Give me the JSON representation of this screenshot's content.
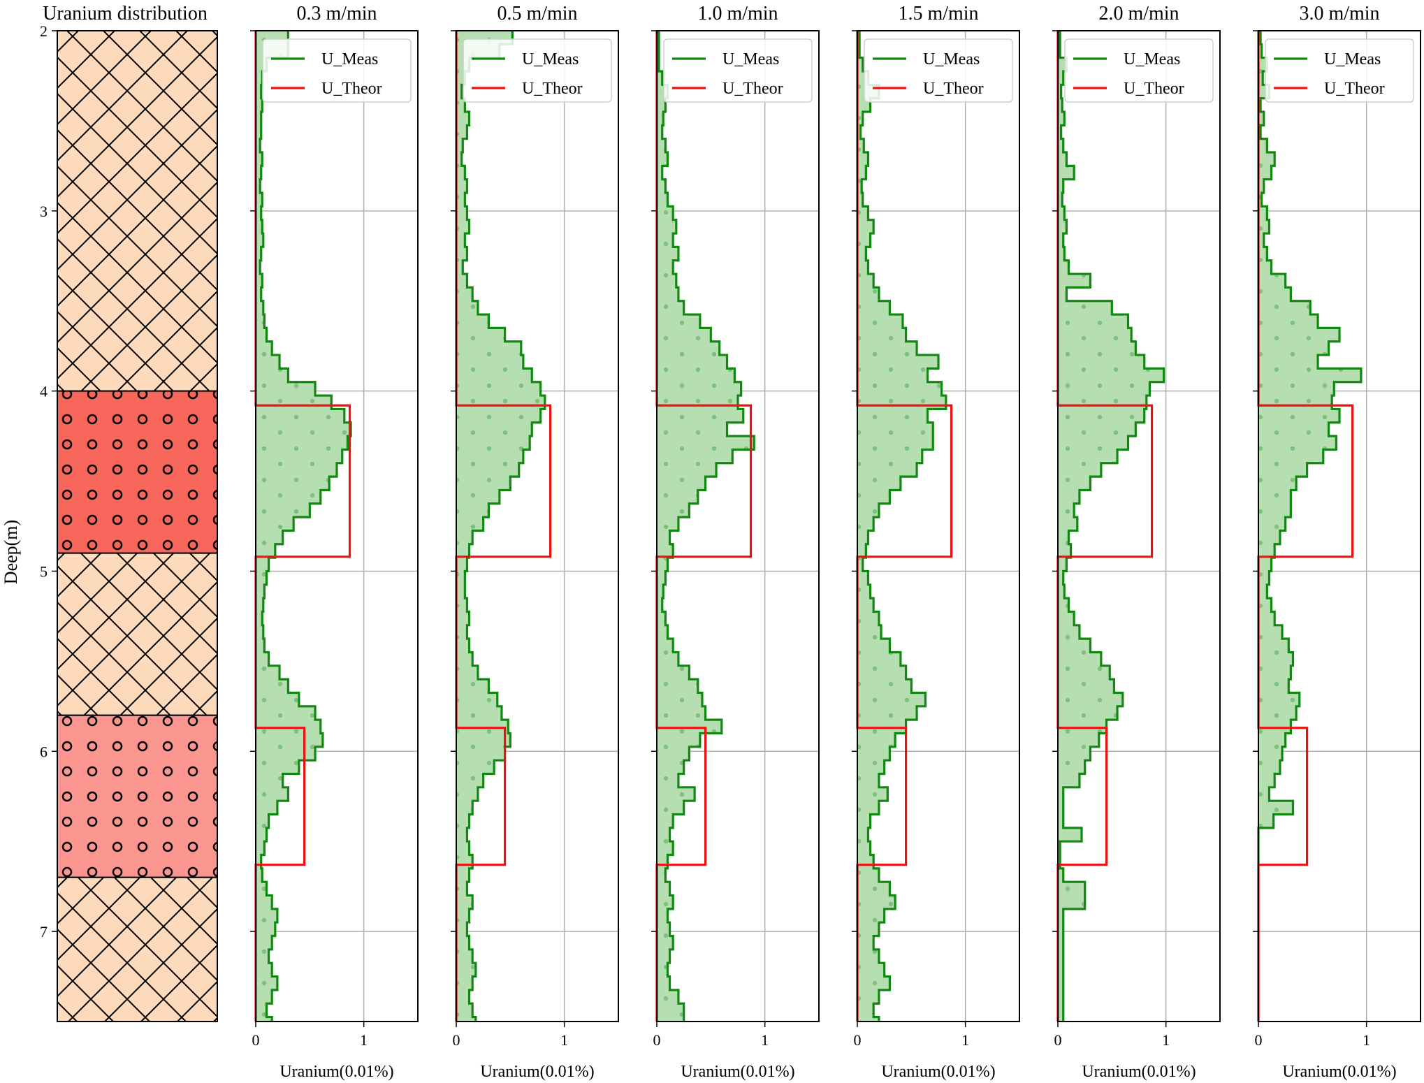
{
  "figure": {
    "ylabel": "Deep(m)",
    "colors": {
      "measured_line": "#118811",
      "measured_fill": "#b5dfb0",
      "measured_dots": "#7cc27c",
      "theoretical_line": "#ee1111",
      "host_rock": "#fddabc",
      "ore_high": "#f7665a",
      "ore_low": "#fa9590",
      "grid": "#b0b0b0"
    }
  },
  "chart_data": [
    {
      "type": "column",
      "title": "Uranium distribution",
      "ylabel": "Deep(m)",
      "ylim": [
        2,
        7.5
      ],
      "y_ticks": [
        2,
        3,
        4,
        5,
        6,
        7
      ],
      "layers": [
        {
          "top": 2.0,
          "bottom": 4.0,
          "pattern": "crosshatch",
          "color": "#fddabc"
        },
        {
          "top": 4.0,
          "bottom": 4.9,
          "pattern": "circles",
          "color": "#f7665a"
        },
        {
          "top": 4.9,
          "bottom": 5.8,
          "pattern": "crosshatch",
          "color": "#fddabc"
        },
        {
          "top": 5.8,
          "bottom": 6.7,
          "pattern": "circles",
          "color": "#fa9590"
        },
        {
          "top": 6.7,
          "bottom": 7.5,
          "pattern": "crosshatch",
          "color": "#fddabc"
        }
      ]
    },
    {
      "type": "area",
      "title": "0.3 m/min",
      "xlabel": "Uranium(0.01%)",
      "xlim": [
        0,
        1.5
      ],
      "ylim": [
        2,
        7.5
      ],
      "x_ticks": [
        0,
        1
      ],
      "y_ticks": [
        2,
        3,
        4,
        5,
        6,
        7
      ],
      "legend": [
        "U_Meas",
        "U_Theor"
      ],
      "legend_position": "top-right",
      "grid": true,
      "depth_step": 0.075,
      "depth_start": 2.0,
      "u_meas": [
        0.3,
        0.3,
        0.1,
        0.06,
        0.05,
        0.06,
        0.05,
        0.05,
        0.04,
        0.06,
        0.05,
        0.04,
        0.06,
        0.05,
        0.06,
        0.07,
        0.05,
        0.04,
        0.06,
        0.05,
        0.07,
        0.08,
        0.1,
        0.15,
        0.22,
        0.3,
        0.55,
        0.7,
        0.82,
        0.88,
        0.85,
        0.8,
        0.75,
        0.68,
        0.6,
        0.5,
        0.35,
        0.25,
        0.18,
        0.12,
        0.1,
        0.08,
        0.07,
        0.06,
        0.07,
        0.08,
        0.12,
        0.22,
        0.3,
        0.4,
        0.55,
        0.6,
        0.62,
        0.55,
        0.4,
        0.25,
        0.3,
        0.2,
        0.12,
        0.1,
        0.08,
        0.05,
        0.06,
        0.1,
        0.15,
        0.2,
        0.18,
        0.15,
        0.12,
        0.15,
        0.2,
        0.15,
        0.1,
        0.15
      ],
      "u_theor": [
        {
          "depth": 2.0,
          "value": 0.0
        },
        {
          "depth": 4.08,
          "value": 0.0
        },
        {
          "depth": 4.08,
          "value": 0.87
        },
        {
          "depth": 4.92,
          "value": 0.87
        },
        {
          "depth": 4.92,
          "value": 0.0
        },
        {
          "depth": 5.87,
          "value": 0.0
        },
        {
          "depth": 5.87,
          "value": 0.45
        },
        {
          "depth": 6.63,
          "value": 0.45
        },
        {
          "depth": 6.63,
          "value": 0.0
        },
        {
          "depth": 7.5,
          "value": 0.0
        }
      ]
    },
    {
      "type": "area",
      "title": "0.5 m/min",
      "xlabel": "Uranium(0.01%)",
      "xlim": [
        0,
        1.5
      ],
      "ylim": [
        2,
        7.5
      ],
      "x_ticks": [
        0,
        1
      ],
      "y_ticks": [
        2,
        3,
        4,
        5,
        6,
        7
      ],
      "legend": [
        "U_Meas",
        "U_Theor"
      ],
      "legend_position": "top-right",
      "grid": true,
      "depth_step": 0.075,
      "depth_start": 2.0,
      "u_meas": [
        0.52,
        0.4,
        0.12,
        0.08,
        0.05,
        0.08,
        0.12,
        0.1,
        0.06,
        0.05,
        0.08,
        0.1,
        0.08,
        0.1,
        0.12,
        0.08,
        0.1,
        0.06,
        0.1,
        0.15,
        0.2,
        0.3,
        0.45,
        0.6,
        0.62,
        0.7,
        0.78,
        0.82,
        0.78,
        0.7,
        0.68,
        0.62,
        0.58,
        0.5,
        0.4,
        0.3,
        0.25,
        0.15,
        0.12,
        0.1,
        0.08,
        0.08,
        0.1,
        0.12,
        0.1,
        0.12,
        0.15,
        0.2,
        0.3,
        0.38,
        0.42,
        0.48,
        0.5,
        0.45,
        0.35,
        0.25,
        0.2,
        0.15,
        0.12,
        0.1,
        0.12,
        0.15,
        0.12,
        0.1,
        0.15,
        0.12,
        0.1,
        0.12,
        0.15,
        0.18,
        0.15,
        0.12,
        0.15,
        0.18
      ]
    },
    {
      "type": "area",
      "title": "1.0 m/min",
      "xlabel": "Uranium(0.01%)",
      "xlim": [
        0,
        1.5
      ],
      "ylim": [
        2,
        7.5
      ],
      "x_ticks": [
        0,
        1
      ],
      "y_ticks": [
        2,
        3,
        4,
        5,
        6,
        7
      ],
      "legend": [
        "U_Meas",
        "U_Theor"
      ],
      "legend_position": "top-right",
      "grid": true,
      "depth_step": 0.075,
      "depth_start": 2.0,
      "u_meas": [
        0.02,
        0.02,
        0.02,
        0.05,
        0.1,
        0.08,
        0.06,
        0.05,
        0.08,
        0.1,
        0.05,
        0.08,
        0.1,
        0.15,
        0.18,
        0.15,
        0.2,
        0.15,
        0.18,
        0.2,
        0.25,
        0.4,
        0.5,
        0.58,
        0.65,
        0.72,
        0.78,
        0.75,
        0.8,
        0.65,
        0.9,
        0.7,
        0.55,
        0.45,
        0.38,
        0.3,
        0.2,
        0.12,
        0.15,
        0.1,
        0.08,
        0.06,
        0.05,
        0.08,
        0.1,
        0.15,
        0.2,
        0.3,
        0.38,
        0.42,
        0.45,
        0.6,
        0.4,
        0.3,
        0.25,
        0.2,
        0.35,
        0.25,
        0.15,
        0.12,
        0.15,
        0.1,
        0.08,
        0.12,
        0.15,
        0.1,
        0.12,
        0.15,
        0.12,
        0.1,
        0.12,
        0.2,
        0.25,
        0.25
      ]
    },
    {
      "type": "area",
      "title": "1.5 m/min",
      "xlabel": "Uranium(0.01%)",
      "xlim": [
        0,
        1.5
      ],
      "ylim": [
        2,
        7.5
      ],
      "x_ticks": [
        0,
        1
      ],
      "y_ticks": [
        2,
        3,
        4,
        5,
        6,
        7
      ],
      "legend": [
        "U_Meas",
        "U_Theor"
      ],
      "legend_position": "top-right",
      "grid": true,
      "depth_step": 0.075,
      "depth_start": 2.0,
      "u_meas": [
        0.02,
        0.02,
        0.05,
        0.1,
        0.2,
        0.12,
        0.05,
        0.03,
        0.06,
        0.1,
        0.08,
        0.04,
        0.05,
        0.1,
        0.15,
        0.12,
        0.08,
        0.1,
        0.15,
        0.2,
        0.3,
        0.42,
        0.45,
        0.55,
        0.75,
        0.65,
        0.78,
        0.82,
        0.65,
        0.7,
        0.7,
        0.6,
        0.55,
        0.4,
        0.3,
        0.2,
        0.15,
        0.1,
        0.08,
        0.05,
        0.1,
        0.12,
        0.15,
        0.2,
        0.22,
        0.3,
        0.4,
        0.45,
        0.5,
        0.63,
        0.55,
        0.45,
        0.35,
        0.3,
        0.25,
        0.2,
        0.28,
        0.2,
        0.12,
        0.1,
        0.12,
        0.15,
        0.2,
        0.3,
        0.35,
        0.25,
        0.2,
        0.15,
        0.2,
        0.25,
        0.3,
        0.2,
        0.15,
        0.2
      ]
    },
    {
      "type": "area",
      "title": "2.0 m/min",
      "xlabel": "Uranium(0.01%)",
      "xlim": [
        0,
        1.5
      ],
      "ylim": [
        2,
        7.5
      ],
      "x_ticks": [
        0,
        1
      ],
      "y_ticks": [
        2,
        3,
        4,
        5,
        6,
        7
      ],
      "legend": [
        "U_Meas",
        "U_Theor"
      ],
      "legend_position": "top-right",
      "grid": true,
      "depth_step": 0.075,
      "depth_start": 2.0,
      "u_meas": [
        0.02,
        0.02,
        0.08,
        0.05,
        0.03,
        0.04,
        0.06,
        0.03,
        0.05,
        0.08,
        0.15,
        0.05,
        0.04,
        0.06,
        0.08,
        0.05,
        0.06,
        0.1,
        0.3,
        0.08,
        0.5,
        0.65,
        0.68,
        0.72,
        0.8,
        0.98,
        0.85,
        0.82,
        0.8,
        0.72,
        0.65,
        0.55,
        0.4,
        0.3,
        0.2,
        0.15,
        0.18,
        0.1,
        0.12,
        0.08,
        0.05,
        0.06,
        0.1,
        0.15,
        0.2,
        0.3,
        0.4,
        0.48,
        0.52,
        0.6,
        0.55,
        0.45,
        0.38,
        0.3,
        0.25,
        0.2,
        0.05,
        0.05,
        0.05,
        0.22,
        0.02,
        0.02,
        0.05,
        0.25,
        0.25,
        0.05,
        0.05,
        0.05,
        0.05,
        0.05,
        0.05,
        0.05,
        0.05,
        0.05
      ]
    },
    {
      "type": "area",
      "title": "3.0 m/min",
      "xlabel": "Uranium(0.01%)",
      "xlim": [
        0,
        1.5
      ],
      "ylim": [
        2,
        7.5
      ],
      "x_ticks": [
        0,
        1
      ],
      "y_ticks": [
        2,
        3,
        4,
        5,
        6,
        7
      ],
      "legend": [
        "U_Meas",
        "U_Theor"
      ],
      "legend_position": "top-right",
      "grid": true,
      "depth_step": 0.075,
      "depth_start": 2.0,
      "u_meas": [
        0.02,
        0.03,
        0.08,
        0.04,
        0.1,
        0.02,
        0.05,
        0.02,
        0.08,
        0.15,
        0.12,
        0.05,
        0.03,
        0.08,
        0.1,
        0.05,
        0.08,
        0.12,
        0.25,
        0.3,
        0.48,
        0.55,
        0.75,
        0.65,
        0.55,
        0.95,
        0.7,
        0.68,
        0.75,
        0.65,
        0.72,
        0.6,
        0.45,
        0.35,
        0.3,
        0.3,
        0.25,
        0.2,
        0.15,
        0.12,
        0.1,
        0.08,
        0.12,
        0.15,
        0.22,
        0.28,
        0.32,
        0.3,
        0.28,
        0.38,
        0.35,
        0.3,
        0.25,
        0.22,
        0.2,
        0.15,
        0.1,
        0.32,
        0.14,
        0.0,
        0.0,
        0.0,
        0.0,
        0.0,
        0.0,
        0.0,
        0.0,
        0.0,
        0.0,
        0.0,
        0.0,
        0.0,
        0.0,
        0.0
      ]
    }
  ]
}
